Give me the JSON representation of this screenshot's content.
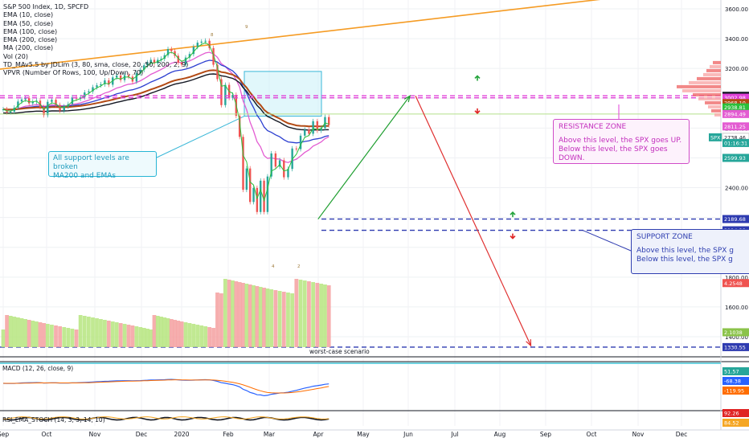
{
  "legend": {
    "title": "S&P 500 Index, 1D, SPCFD",
    "items": [
      "EMA (10, close)",
      "EMA (50, close)",
      "EMA (100, close)",
      "EMA (200, close)",
      "MA (200, close)",
      "Vol (20)",
      "TD_MAv5.5 by JDLim (3, 80, sma, close, 20, 50, 200, 2, 9)",
      "VPVR (Number Of Rows, 100, Up/Down, 70)"
    ]
  },
  "annotations": {
    "resistance_title": "RESISTANCE ZONE",
    "resistance_line1": "Above this level, the SPX goes UP.",
    "resistance_line2": "Below this level, the SPX goes DOWN.",
    "support_title": "SUPPORT ZONE",
    "support_line1": "Above this level, the SPX g",
    "support_line2": "Below this level, the SPX g",
    "broken_line1": "All support levels are broken",
    "broken_line2": "MA200 and EMAs",
    "worst_case": "worst-case scenario",
    "td_labels": [
      "8",
      "9",
      "4",
      "2"
    ]
  },
  "panes": {
    "macd_label": "MACD (12, 26, close, 9)",
    "stoch_label": "RSI_EMA_STOCH (14, 3, 3, 14, 10)"
  },
  "colors": {
    "resistance": "#e040d8",
    "support": "#2e3bb0",
    "up_arrow": "#22a33a",
    "down_arrow": "#e02424",
    "candle_up": "#26a69a",
    "candle_down": "#ef5350"
  },
  "chart_data": {
    "type": "line",
    "title": "S&P 500 Index, 1D, SPCFD",
    "x_ticks": [
      "Sep",
      "Oct",
      "Nov",
      "Dec",
      "2020",
      "Feb",
      "Mar",
      "Apr",
      "May",
      "Jun",
      "Jul",
      "Aug",
      "Sep",
      "Oct",
      "Nov",
      "Dec"
    ],
    "y_ticks": [
      3600,
      3400,
      3200,
      3000,
      2800,
      2600,
      2400,
      2200,
      2000,
      1800,
      1600,
      1400
    ],
    "ylim": [
      1300,
      3700
    ],
    "price_labels": [
      "3016.54",
      "3003.21",
      "3002.98",
      "2968.10",
      "2938.81",
      "2894.49",
      "2811.25",
      "2738.46",
      "01:16:31",
      "2599.93",
      "2189.68",
      "2114.28",
      "4.2548",
      "2.1038",
      "1330.55",
      "51.57",
      "-68.38",
      "-119.95",
      "92.26",
      "84.52"
    ],
    "current_price_label": "SPX",
    "resistance_levels": [
      3016.54,
      3002.98
    ],
    "support_levels": [
      2189.68,
      2114.28
    ],
    "worst_case_level": 1330.55,
    "close_series": {
      "name": "",
      "values": [
        2926,
        2906,
        2910,
        2937,
        2978,
        2992,
        3000,
        2966,
        2977,
        2984,
        2940,
        2887,
        2976,
        2990,
        2955,
        2917,
        2945,
        2961,
        3006,
        2997,
        3007,
        3039,
        3046,
        3074,
        3087,
        3094,
        3120,
        3091,
        3140,
        3153,
        3122,
        3155,
        3145,
        3112,
        3168,
        3191,
        3221,
        3240,
        3258,
        3235,
        3258,
        3265,
        3289,
        3330,
        3316,
        3285,
        3239,
        3226,
        3273,
        3297,
        3345,
        3373,
        3380,
        3386,
        3337,
        3225,
        3128,
        2954,
        3090,
        3003,
        3023,
        2882,
        2741,
        2386,
        2529,
        2304,
        2398,
        2237,
        2447,
        2237,
        2475,
        2630,
        2541,
        2584,
        2470,
        2526,
        2663,
        2659,
        2749,
        2789,
        2762,
        2846,
        2783,
        2799,
        2874,
        2820
      ]
    },
    "arrows": [
      {
        "name": "up-projection",
        "from": [
          2020.25,
          2189
        ],
        "to": [
          2020.42,
          3016
        ]
      },
      {
        "name": "down-projection",
        "from": [
          2020.43,
          3016
        ],
        "to": [
          2020.64,
          1340
        ]
      }
    ]
  }
}
